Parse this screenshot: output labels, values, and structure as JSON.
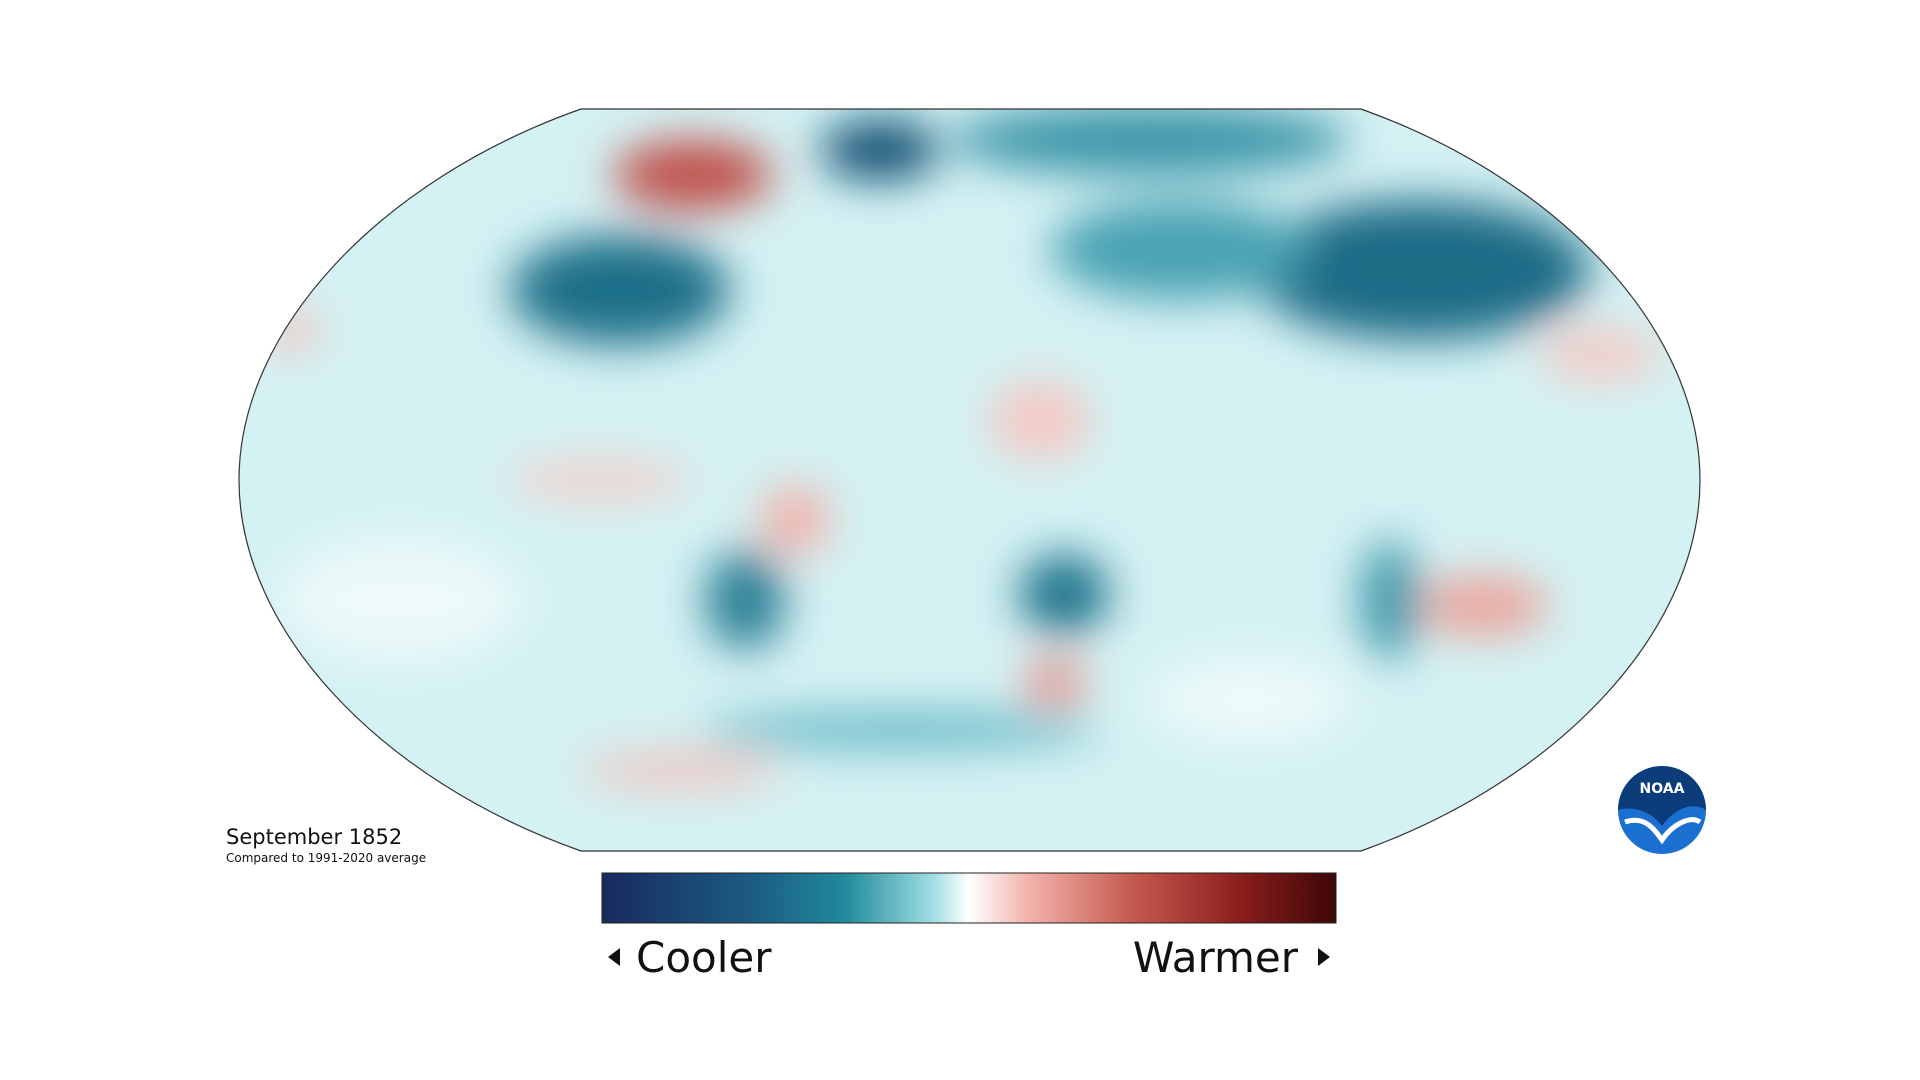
{
  "title": "September 1852",
  "subtitle": "Compared to 1991-2020 average",
  "legend": {
    "low_label": "Cooler",
    "high_label": "Warmer"
  },
  "logo": "NOAA"
}
